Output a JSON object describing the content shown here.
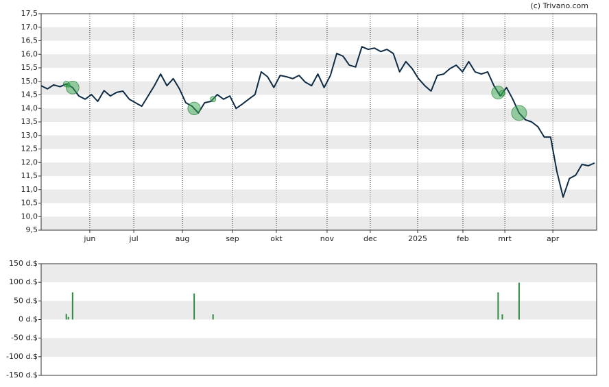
{
  "chart_data": [
    {
      "type": "line",
      "source": "(c) Trivano.com",
      "color": "#0d2b45",
      "grid": true,
      "x": [
        0,
        3,
        6,
        9,
        12,
        15,
        18,
        21,
        24,
        27,
        30,
        33,
        36,
        39,
        42,
        45,
        48,
        51,
        54,
        57,
        60,
        63,
        66,
        69,
        72,
        75,
        78,
        81,
        84,
        87,
        90,
        93,
        96,
        99,
        102,
        105,
        108,
        111,
        114,
        117,
        120,
        123,
        126,
        129,
        132,
        135,
        138,
        141,
        144,
        147,
        150,
        153,
        156,
        159,
        162,
        165,
        168,
        171,
        174,
        177,
        180,
        183,
        186,
        189,
        192,
        195,
        198,
        201,
        204,
        207,
        210,
        213,
        216,
        219,
        222,
        225,
        228,
        231,
        234,
        237,
        240,
        243,
        246,
        249,
        252,
        255,
        258,
        261,
        264
      ],
      "values": [
        14.84,
        14.72,
        14.87,
        14.8,
        14.9,
        14.77,
        14.46,
        14.34,
        14.51,
        14.26,
        14.66,
        14.46,
        14.59,
        14.64,
        14.34,
        14.21,
        14.08,
        14.46,
        14.84,
        15.27,
        14.84,
        15.1,
        14.72,
        14.21,
        14.08,
        13.83,
        14.21,
        14.26,
        14.51,
        14.34,
        14.46,
        14.0,
        14.16,
        14.34,
        14.51,
        15.35,
        15.17,
        14.77,
        15.22,
        15.17,
        15.1,
        15.22,
        14.97,
        14.84,
        15.27,
        14.77,
        15.22,
        16.03,
        15.93,
        15.6,
        15.53,
        16.28,
        16.18,
        16.23,
        16.1,
        16.18,
        16.03,
        15.35,
        15.73,
        15.47,
        15.1,
        14.84,
        14.64,
        15.22,
        15.27,
        15.47,
        15.6,
        15.35,
        15.73,
        15.35,
        15.27,
        15.35,
        14.84,
        14.46,
        14.77,
        14.34,
        13.83,
        13.58,
        13.5,
        13.32,
        12.94,
        12.94,
        11.68,
        10.72,
        11.41,
        11.53,
        11.93,
        11.88,
        11.98
      ],
      "xlim": [
        0,
        265
      ],
      "xticks": [
        {
          "value": 23.2,
          "label": "jun"
        },
        {
          "value": 44.2,
          "label": "jul"
        },
        {
          "value": 67.4,
          "label": "aug"
        },
        {
          "value": 91.3,
          "label": "sep"
        },
        {
          "value": 112.2,
          "label": "okt"
        },
        {
          "value": 136.4,
          "label": "nov"
        },
        {
          "value": 157.0,
          "label": "dec"
        },
        {
          "value": 179.6,
          "label": "2025"
        },
        {
          "value": 201.2,
          "label": "feb"
        },
        {
          "value": 221.2,
          "label": "mrt"
        },
        {
          "value": 244.1,
          "label": "apr"
        }
      ],
      "ylim": [
        9.5,
        17.5
      ],
      "yticks": [
        {
          "value": 9.5,
          "label": "9,5"
        },
        {
          "value": 10.0,
          "label": "10,0"
        },
        {
          "value": 10.5,
          "label": "10,5"
        },
        {
          "value": 11.0,
          "label": "11,0"
        },
        {
          "value": 11.5,
          "label": "11,5"
        },
        {
          "value": 12.0,
          "label": "12,0"
        },
        {
          "value": 12.5,
          "label": "12,5"
        },
        {
          "value": 13.0,
          "label": "13,0"
        },
        {
          "value": 13.5,
          "label": "13,5"
        },
        {
          "value": 14.0,
          "label": "14,0"
        },
        {
          "value": 14.5,
          "label": "14,5"
        },
        {
          "value": 15.0,
          "label": "15,0"
        },
        {
          "value": 15.5,
          "label": "15,5"
        },
        {
          "value": 16.0,
          "label": "16,0"
        },
        {
          "value": 16.5,
          "label": "16,5"
        },
        {
          "value": 17.0,
          "label": "17,0"
        },
        {
          "value": 17.5,
          "label": "17,5"
        }
      ]
    },
    {
      "type": "bar",
      "color": "#2e8b3e",
      "grid": true,
      "x": [
        12,
        13,
        15,
        73,
        82,
        218,
        220,
        228
      ],
      "values": [
        15,
        7,
        73,
        70,
        14,
        73,
        14,
        99
      ],
      "xlim": [
        0,
        265
      ],
      "ylim": [
        -150,
        150
      ],
      "yticks": [
        {
          "value": -150,
          "label": "-150 d.$"
        },
        {
          "value": -100,
          "label": "-100 d.$"
        },
        {
          "value": -50,
          "label": "-50 d.$"
        },
        {
          "value": 0,
          "label": "0 d.$"
        },
        {
          "value": 50,
          "label": "50 d.$"
        },
        {
          "value": 100,
          "label": "100 d.$"
        },
        {
          "value": 150,
          "label": "150 d.$"
        }
      ]
    }
  ]
}
